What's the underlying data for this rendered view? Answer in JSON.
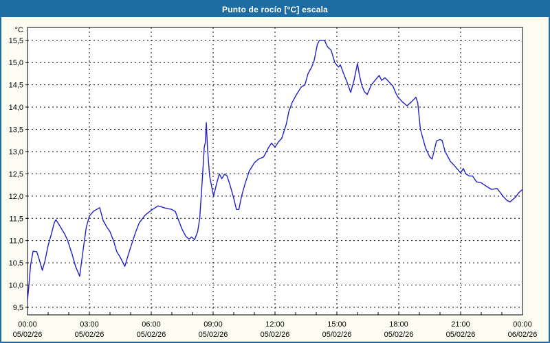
{
  "window": {
    "title": "Punto de rocío [°C] escala"
  },
  "chart_data": {
    "type": "line",
    "title": "Punto de rocío [°C] escala",
    "unit_label": "°C",
    "grid": "dotted",
    "legend": "none",
    "colors": {
      "line": "#2020C8",
      "grid": "#000000",
      "axis": "#000000",
      "plot_bg": "#FFFFFF",
      "window_bg": "#FCFCF2",
      "frame": "#1E6CA1",
      "title_text": "#FFFFFF"
    },
    "x_axis": {
      "hours_span": 24,
      "minor_tick_every_hours": 1,
      "major_grid_hours": [
        3,
        6,
        9,
        12,
        15,
        18,
        21
      ],
      "ticks": [
        {
          "hour": 0,
          "time": "00:00",
          "date": "05/02/26"
        },
        {
          "hour": 3,
          "time": "03:00",
          "date": "05/02/26"
        },
        {
          "hour": 6,
          "time": "06:00",
          "date": "05/02/26"
        },
        {
          "hour": 9,
          "time": "09:00",
          "date": "05/02/26"
        },
        {
          "hour": 12,
          "time": "12:00",
          "date": "05/02/26"
        },
        {
          "hour": 15,
          "time": "15:00",
          "date": "05/02/26"
        },
        {
          "hour": 18,
          "time": "18:00",
          "date": "05/02/26"
        },
        {
          "hour": 21,
          "time": "21:00",
          "date": "05/02/26"
        },
        {
          "hour": 24,
          "time": "00:00",
          "date": "06/02/26"
        }
      ]
    },
    "y_axis": {
      "display_range": [
        9.33,
        15.79
      ],
      "ticks": [
        {
          "value": 9.5,
          "label": "9,5"
        },
        {
          "value": 10.0,
          "label": "10,0"
        },
        {
          "value": 10.5,
          "label": "10,5"
        },
        {
          "value": 11.0,
          "label": "11,0"
        },
        {
          "value": 11.5,
          "label": "11,5"
        },
        {
          "value": 12.0,
          "label": "12,0"
        },
        {
          "value": 12.5,
          "label": "12,5"
        },
        {
          "value": 13.0,
          "label": "13,0"
        },
        {
          "value": 13.5,
          "label": "13,5"
        },
        {
          "value": 14.0,
          "label": "14,0"
        },
        {
          "value": 14.5,
          "label": "14,5"
        },
        {
          "value": 15.0,
          "label": "15,0"
        },
        {
          "value": 15.5,
          "label": "15,5"
        }
      ]
    },
    "series": [
      {
        "name": "Punto de rocío [°C]",
        "points": [
          [
            0.0,
            9.65
          ],
          [
            0.05,
            9.9
          ],
          [
            0.1,
            10.17
          ],
          [
            0.15,
            10.45
          ],
          [
            0.27,
            10.76
          ],
          [
            0.45,
            10.75
          ],
          [
            0.55,
            10.6
          ],
          [
            0.72,
            10.33
          ],
          [
            0.85,
            10.55
          ],
          [
            1.0,
            10.89
          ],
          [
            1.17,
            11.17
          ],
          [
            1.3,
            11.4
          ],
          [
            1.38,
            11.47
          ],
          [
            1.5,
            11.38
          ],
          [
            1.63,
            11.28
          ],
          [
            1.8,
            11.15
          ],
          [
            1.95,
            11.0
          ],
          [
            2.17,
            10.68
          ],
          [
            2.33,
            10.42
          ],
          [
            2.53,
            10.2
          ],
          [
            2.7,
            10.8
          ],
          [
            2.85,
            11.3
          ],
          [
            3.0,
            11.55
          ],
          [
            3.2,
            11.66
          ],
          [
            3.5,
            11.74
          ],
          [
            3.67,
            11.45
          ],
          [
            3.85,
            11.3
          ],
          [
            4.0,
            11.2
          ],
          [
            4.17,
            11.0
          ],
          [
            4.33,
            10.75
          ],
          [
            4.5,
            10.62
          ],
          [
            4.72,
            10.42
          ],
          [
            4.9,
            10.7
          ],
          [
            5.05,
            10.92
          ],
          [
            5.25,
            11.2
          ],
          [
            5.42,
            11.4
          ],
          [
            5.7,
            11.57
          ],
          [
            6.0,
            11.68
          ],
          [
            6.33,
            11.78
          ],
          [
            6.67,
            11.73
          ],
          [
            7.0,
            11.7
          ],
          [
            7.17,
            11.65
          ],
          [
            7.33,
            11.45
          ],
          [
            7.5,
            11.25
          ],
          [
            7.67,
            11.1
          ],
          [
            7.83,
            11.03
          ],
          [
            7.95,
            11.08
          ],
          [
            8.1,
            11.02
          ],
          [
            8.25,
            11.2
          ],
          [
            8.35,
            11.5
          ],
          [
            8.48,
            12.4
          ],
          [
            8.57,
            13.1
          ],
          [
            8.62,
            13.2
          ],
          [
            8.67,
            13.65
          ],
          [
            8.73,
            13.05
          ],
          [
            8.83,
            12.45
          ],
          [
            9.02,
            12.0
          ],
          [
            9.18,
            12.3
          ],
          [
            9.3,
            12.5
          ],
          [
            9.42,
            12.39
          ],
          [
            9.55,
            12.49
          ],
          [
            9.67,
            12.46
          ],
          [
            9.83,
            12.23
          ],
          [
            10.0,
            11.95
          ],
          [
            10.13,
            11.7
          ],
          [
            10.25,
            11.7
          ],
          [
            10.38,
            12.0
          ],
          [
            10.55,
            12.28
          ],
          [
            10.75,
            12.56
          ],
          [
            11.0,
            12.75
          ],
          [
            11.2,
            12.83
          ],
          [
            11.45,
            12.88
          ],
          [
            11.7,
            13.1
          ],
          [
            11.83,
            13.19
          ],
          [
            12.0,
            13.1
          ],
          [
            12.17,
            13.22
          ],
          [
            12.33,
            13.3
          ],
          [
            12.55,
            13.62
          ],
          [
            12.67,
            13.9
          ],
          [
            12.83,
            14.1
          ],
          [
            13.0,
            14.25
          ],
          [
            13.27,
            14.45
          ],
          [
            13.45,
            14.5
          ],
          [
            13.6,
            14.75
          ],
          [
            13.78,
            14.9
          ],
          [
            13.9,
            15.05
          ],
          [
            14.05,
            15.4
          ],
          [
            14.15,
            15.5
          ],
          [
            14.4,
            15.5
          ],
          [
            14.55,
            15.35
          ],
          [
            14.72,
            15.28
          ],
          [
            14.9,
            15.0
          ],
          [
            15.08,
            14.9
          ],
          [
            15.17,
            14.95
          ],
          [
            15.33,
            14.75
          ],
          [
            15.5,
            14.55
          ],
          [
            15.67,
            14.33
          ],
          [
            15.83,
            14.6
          ],
          [
            16.0,
            14.98
          ],
          [
            16.08,
            14.75
          ],
          [
            16.2,
            14.5
          ],
          [
            16.33,
            14.35
          ],
          [
            16.47,
            14.28
          ],
          [
            16.67,
            14.5
          ],
          [
            16.85,
            14.6
          ],
          [
            17.05,
            14.71
          ],
          [
            17.17,
            14.6
          ],
          [
            17.33,
            14.66
          ],
          [
            17.5,
            14.58
          ],
          [
            17.72,
            14.47
          ],
          [
            17.85,
            14.32
          ],
          [
            17.97,
            14.22
          ],
          [
            18.17,
            14.12
          ],
          [
            18.4,
            14.03
          ],
          [
            18.62,
            14.12
          ],
          [
            18.83,
            14.22
          ],
          [
            18.92,
            14.1
          ],
          [
            19.05,
            13.5
          ],
          [
            19.3,
            13.08
          ],
          [
            19.5,
            12.88
          ],
          [
            19.62,
            12.83
          ],
          [
            19.83,
            13.24
          ],
          [
            20.0,
            13.27
          ],
          [
            20.1,
            13.25
          ],
          [
            20.25,
            13.0
          ],
          [
            20.5,
            12.78
          ],
          [
            20.67,
            12.7
          ],
          [
            21.0,
            12.52
          ],
          [
            21.13,
            12.62
          ],
          [
            21.25,
            12.5
          ],
          [
            21.42,
            12.45
          ],
          [
            21.58,
            12.45
          ],
          [
            21.77,
            12.32
          ],
          [
            22.0,
            12.3
          ],
          [
            22.25,
            12.22
          ],
          [
            22.5,
            12.15
          ],
          [
            22.77,
            12.17
          ],
          [
            23.05,
            12.0
          ],
          [
            23.25,
            11.9
          ],
          [
            23.4,
            11.87
          ],
          [
            23.67,
            11.98
          ],
          [
            23.83,
            12.08
          ],
          [
            24.0,
            12.15
          ]
        ]
      }
    ]
  }
}
